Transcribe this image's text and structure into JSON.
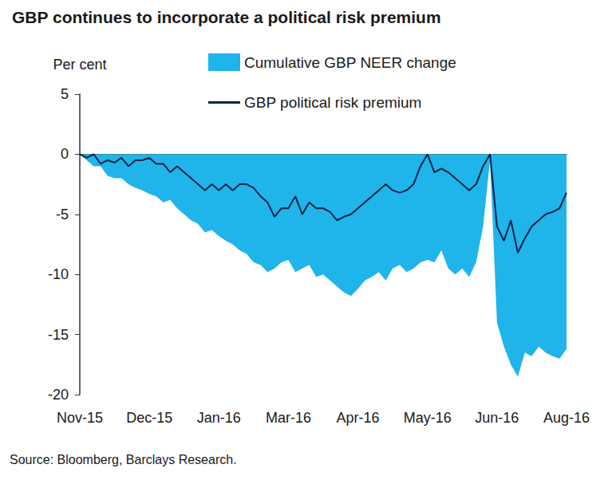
{
  "chart_data": {
    "type": "line",
    "title": "GBP continues to incorporate a political risk premium",
    "ylabel": "Per cent",
    "source": "Source: Bloomberg, Barclays Research.",
    "legend": "top",
    "grid": false,
    "categories": [
      "Nov-15",
      null,
      null,
      null,
      null,
      null,
      null,
      null,
      null,
      null,
      "Dec-15",
      null,
      null,
      null,
      null,
      null,
      null,
      null,
      null,
      null,
      "Jan-16",
      null,
      null,
      null,
      null,
      null,
      null,
      null,
      null,
      null,
      "Mar-16",
      null,
      null,
      null,
      null,
      null,
      null,
      null,
      null,
      null,
      "Apr-16",
      null,
      null,
      null,
      null,
      null,
      null,
      null,
      null,
      null,
      "May-16",
      null,
      null,
      null,
      null,
      null,
      null,
      null,
      null,
      null,
      "Jun-16",
      null,
      null,
      null,
      null,
      null,
      null,
      null,
      null,
      null,
      "Aug-16"
    ],
    "ylim": [
      -20,
      5
    ],
    "yticks": [
      -20,
      -15,
      -10,
      -5,
      0,
      5
    ],
    "series": [
      {
        "name": "Cumulative GBP NEER change",
        "type": "area",
        "color": "#1fb4ea",
        "values": [
          0,
          -0.5,
          -1.0,
          -1.0,
          -1.8,
          -2.0,
          -2.0,
          -2.5,
          -2.8,
          -3.0,
          -3.3,
          -3.5,
          -4.0,
          -3.8,
          -4.5,
          -5.0,
          -5.5,
          -5.8,
          -6.5,
          -6.3,
          -6.8,
          -7.2,
          -7.5,
          -8.0,
          -8.3,
          -9.0,
          -9.2,
          -9.8,
          -9.5,
          -9.0,
          -8.8,
          -9.8,
          -9.5,
          -9.2,
          -10.2,
          -10.0,
          -10.5,
          -11.0,
          -11.5,
          -11.8,
          -11.2,
          -10.5,
          -10.2,
          -9.8,
          -10.5,
          -9.5,
          -9.2,
          -9.8,
          -9.5,
          -9.0,
          -8.8,
          -9.0,
          -8.0,
          -9.5,
          -10.0,
          -9.5,
          -10.2,
          -9.0,
          -6.0,
          -0.5,
          -14.0,
          -16.0,
          -17.5,
          -18.5,
          -16.5,
          -16.8,
          -16.0,
          -16.5,
          -16.8,
          -17.0,
          -16.2
        ]
      },
      {
        "name": "GBP political risk premium",
        "type": "line",
        "color": "#0b2546",
        "values": [
          0,
          -0.3,
          0,
          -0.8,
          -0.5,
          -0.7,
          -0.3,
          -1.0,
          -0.5,
          -0.5,
          -0.3,
          -0.8,
          -0.8,
          -1.5,
          -1.0,
          -1.5,
          -2.0,
          -2.5,
          -3.0,
          -2.5,
          -3.0,
          -2.5,
          -3.0,
          -2.5,
          -2.5,
          -2.8,
          -3.5,
          -4.0,
          -5.2,
          -4.5,
          -4.5,
          -3.5,
          -5.0,
          -4.0,
          -4.5,
          -4.5,
          -4.8,
          -5.5,
          -5.2,
          -5.0,
          -4.5,
          -4.0,
          -3.5,
          -3.0,
          -2.5,
          -3.0,
          -3.2,
          -3.0,
          -2.5,
          -1.0,
          0,
          -1.5,
          -1.2,
          -1.5,
          -2.0,
          -2.5,
          -3.0,
          -2.5,
          -1.0,
          0,
          -6.0,
          -7.2,
          -5.5,
          -8.2,
          -7.0,
          -6.0,
          -5.5,
          -5.0,
          -4.8,
          -4.5,
          -3.2
        ]
      }
    ]
  }
}
